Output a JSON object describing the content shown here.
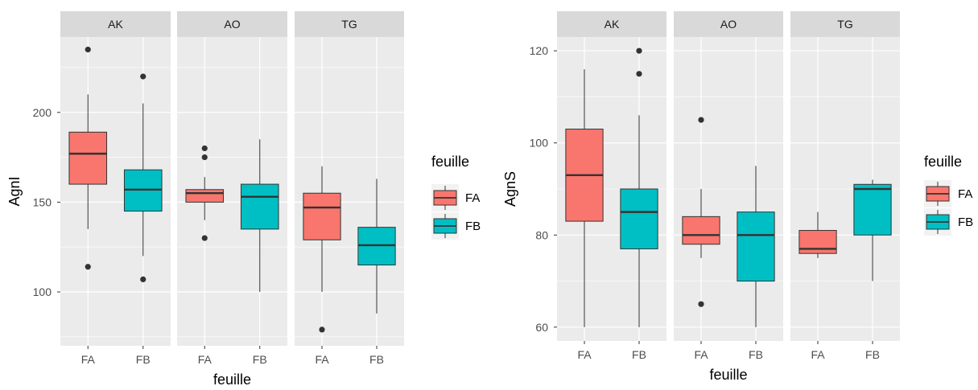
{
  "chart_data": [
    {
      "type": "boxplot",
      "facet_by": "",
      "facets": [
        "AK",
        "AO",
        "TG"
      ],
      "categories": [
        "FA",
        "FB"
      ],
      "xlabel": "feuille",
      "ylabel": "AgnI",
      "ylim": [
        70,
        242
      ],
      "yticks": [
        100,
        150,
        200
      ],
      "grid": true,
      "legend": {
        "title": "feuille",
        "position": "right",
        "entries": [
          "FA",
          "FB"
        ]
      },
      "series_colors": {
        "FA": "#F8766D",
        "FB": "#00BFC4"
      },
      "boxes": [
        {
          "facet": "AK",
          "group": "FA",
          "whisker_low": 135,
          "q1": 160,
          "median": 177,
          "q3": 189,
          "whisker_high": 210,
          "outliers": [
            235,
            114
          ]
        },
        {
          "facet": "AK",
          "group": "FB",
          "whisker_low": 120,
          "q1": 145,
          "median": 157,
          "q3": 168,
          "whisker_high": 205,
          "outliers": [
            220,
            107
          ]
        },
        {
          "facet": "AO",
          "group": "FA",
          "whisker_low": 140,
          "q1": 150,
          "median": 155,
          "q3": 157,
          "whisker_high": 164,
          "outliers": [
            180,
            175,
            130
          ]
        },
        {
          "facet": "AO",
          "group": "FB",
          "whisker_low": 100,
          "q1": 135,
          "median": 153,
          "q3": 160,
          "whisker_high": 185,
          "outliers": []
        },
        {
          "facet": "TG",
          "group": "FA",
          "whisker_low": 100,
          "q1": 129,
          "median": 147,
          "q3": 155,
          "whisker_high": 170,
          "outliers": [
            79
          ]
        },
        {
          "facet": "TG",
          "group": "FB",
          "whisker_low": 88,
          "q1": 115,
          "median": 126,
          "q3": 136,
          "whisker_high": 163,
          "outliers": []
        }
      ]
    },
    {
      "type": "boxplot",
      "facet_by": "",
      "facets": [
        "AK",
        "AO",
        "TG"
      ],
      "categories": [
        "FA",
        "FB"
      ],
      "xlabel": "feuille",
      "ylabel": "AgnS",
      "ylim": [
        57,
        123
      ],
      "yticks": [
        60,
        80,
        100,
        120
      ],
      "grid": true,
      "legend": {
        "title": "feuille",
        "position": "right",
        "entries": [
          "FA",
          "FB"
        ]
      },
      "series_colors": {
        "FA": "#F8766D",
        "FB": "#00BFC4"
      },
      "boxes": [
        {
          "facet": "AK",
          "group": "FA",
          "whisker_low": 60,
          "q1": 83,
          "median": 93,
          "q3": 103,
          "whisker_high": 116,
          "outliers": []
        },
        {
          "facet": "AK",
          "group": "FB",
          "whisker_low": 60,
          "q1": 77,
          "median": 85,
          "q3": 90,
          "whisker_high": 106,
          "outliers": [
            120,
            115
          ]
        },
        {
          "facet": "AO",
          "group": "FA",
          "whisker_low": 75,
          "q1": 78,
          "median": 80,
          "q3": 84,
          "whisker_high": 90,
          "outliers": [
            105,
            65
          ]
        },
        {
          "facet": "AO",
          "group": "FB",
          "whisker_low": 60,
          "q1": 70,
          "median": 80,
          "q3": 85,
          "whisker_high": 95,
          "outliers": []
        },
        {
          "facet": "TG",
          "group": "FA",
          "whisker_low": 75,
          "q1": 76,
          "median": 77,
          "q3": 81,
          "whisker_high": 85,
          "outliers": []
        },
        {
          "facet": "TG",
          "group": "FB",
          "whisker_low": 70,
          "q1": 80,
          "median": 90,
          "q3": 91,
          "whisker_high": 92,
          "outliers": []
        }
      ]
    }
  ]
}
